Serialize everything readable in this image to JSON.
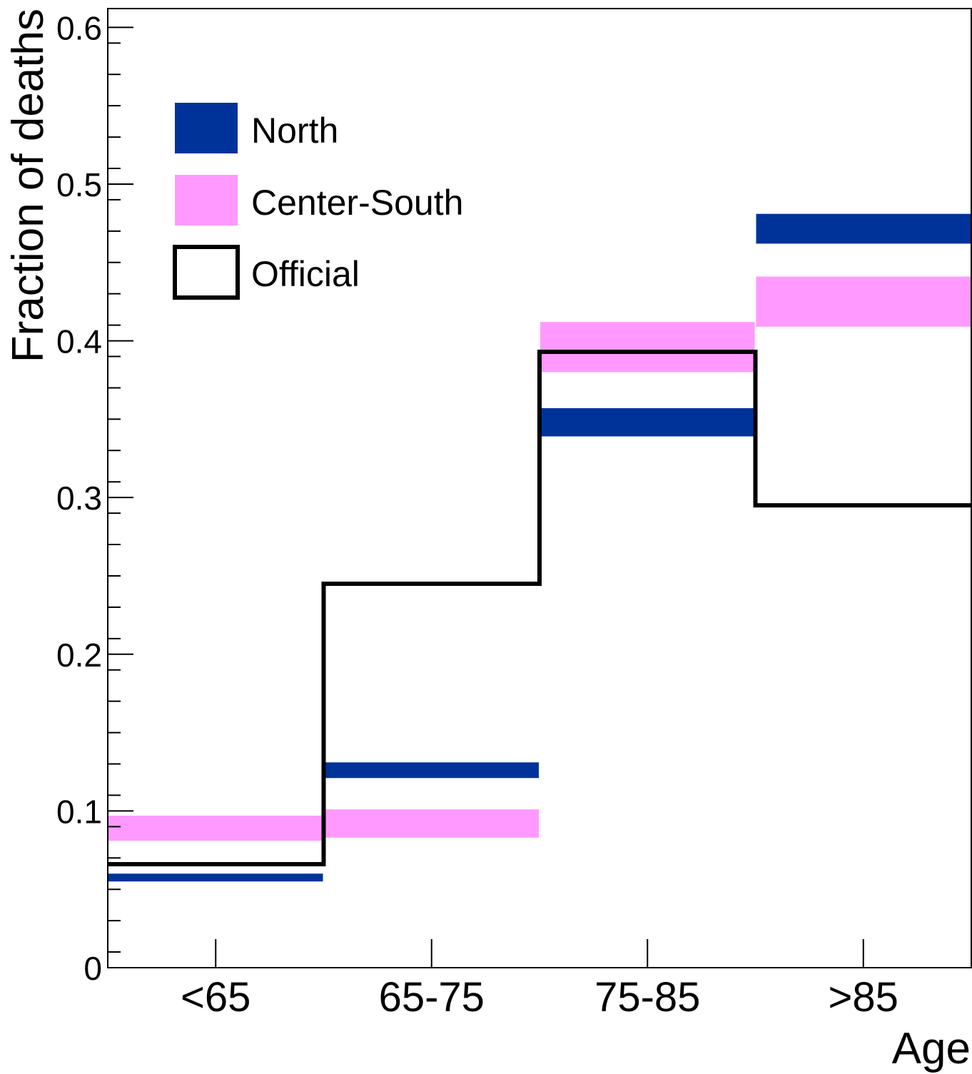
{
  "chart_data": {
    "type": "bar",
    "categories": [
      "<65",
      "65-75",
      "75-85",
      ">85"
    ],
    "series": [
      {
        "name": "North",
        "style": "band",
        "color": "#00339a",
        "low": [
          0.055,
          0.121,
          0.339,
          0.462
        ],
        "high": [
          0.06,
          0.131,
          0.357,
          0.481
        ]
      },
      {
        "name": "Center-South",
        "style": "band",
        "color": "#ff99ff",
        "low": [
          0.081,
          0.083,
          0.38,
          0.409
        ],
        "high": [
          0.097,
          0.101,
          0.412,
          0.441
        ]
      },
      {
        "name": "Official",
        "style": "step",
        "color": "#000000",
        "values": [
          0.066,
          0.245,
          0.393,
          0.295
        ]
      }
    ],
    "xlabel": "Age",
    "ylabel": "Fraction of deaths",
    "ylim": [
      0,
      0.612
    ],
    "yticks": [
      0,
      0.1,
      0.2,
      0.3,
      0.4,
      0.5,
      0.6
    ],
    "ytick_labels": [
      "0",
      "0.1",
      "0.2",
      "0.3",
      "0.4",
      "0.5",
      "0.6"
    ],
    "legend_position": "top-left",
    "grid": false
  }
}
